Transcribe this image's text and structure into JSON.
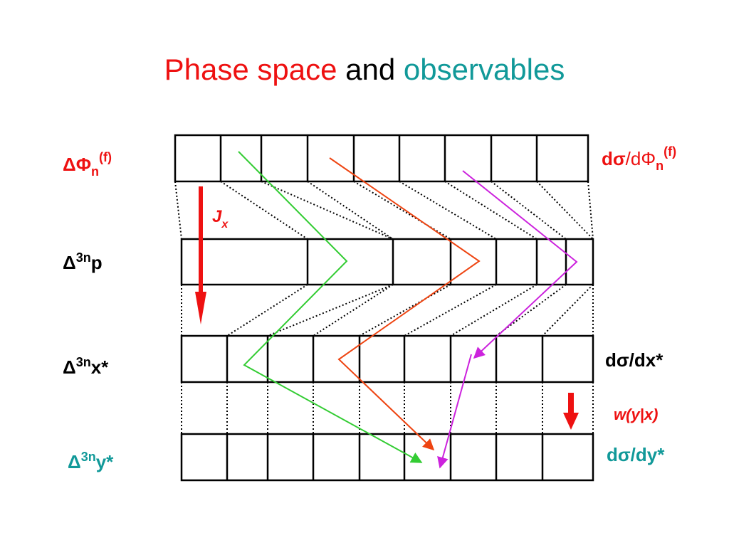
{
  "title": [
    "Phase space",
    "and",
    "observables"
  ],
  "left_labels": [
    {
      "main": "ΔΦ",
      "sub": "n",
      "sup": "(f)"
    },
    {
      "main": "Δ",
      "sup": "3n",
      "tail": "p"
    },
    {
      "main": "Δ",
      "sup": "3n",
      "tail": "x*"
    },
    {
      "main": "Δ",
      "sup": "3n",
      "tail": "y*"
    }
  ],
  "right_labels": [
    {
      "head": "dσ",
      "mid": "/dΦ",
      "sub": "n",
      "sup": "(f)"
    },
    {
      "head": "dσ/dx*"
    },
    {
      "head": "dσ/dy*"
    }
  ],
  "arrow_labels": [
    {
      "main": "J",
      "sub": "x"
    },
    {
      "main": "w(y|x)"
    }
  ]
}
